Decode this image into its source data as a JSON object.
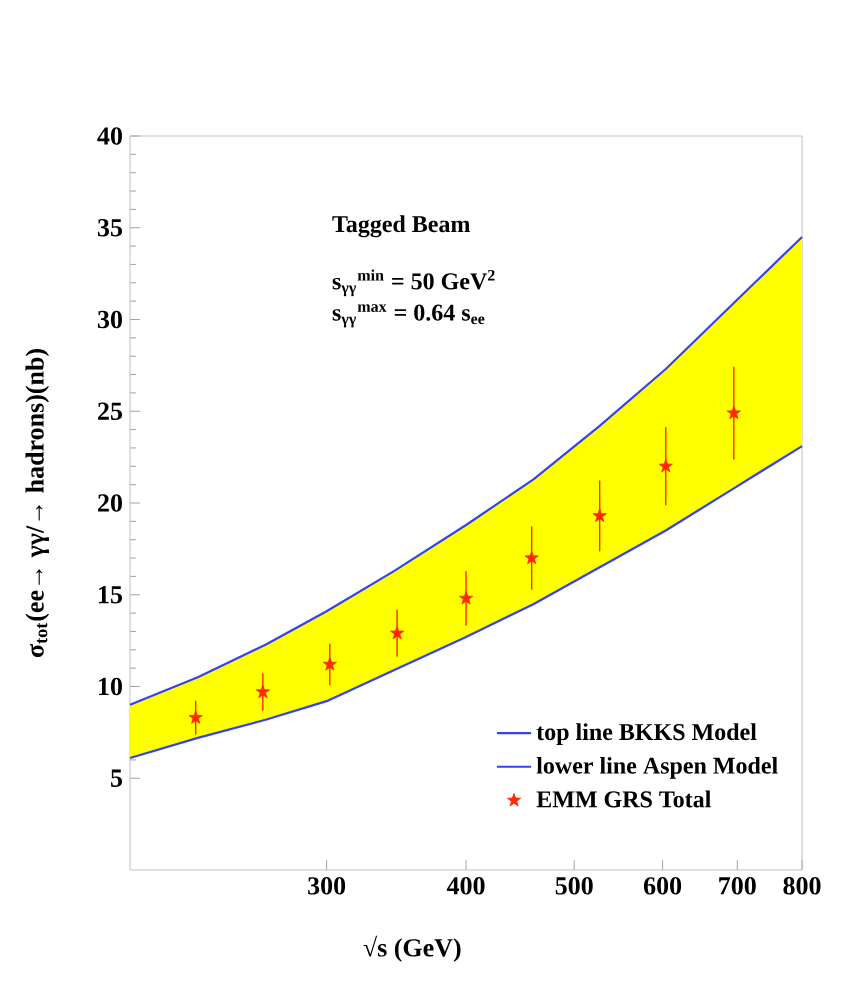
{
  "chart_data": {
    "type": "line",
    "xlabel": "√s (GeV)",
    "ylabel": "σ$_{tot}$(ee→ γγ/→ hadrons)(nb)",
    "log": "x",
    "xlim": [
      200,
      800
    ],
    "xticks": [
      300,
      400,
      500,
      600,
      700,
      800
    ],
    "ylim": [
      0,
      40
    ],
    "yticks": [
      5,
      10,
      15,
      20,
      25,
      30,
      35,
      40
    ],
    "legend": "bottom right",
    "grid": false,
    "annotations": [
      "Tagged Beam",
      "s$_{γγ}$$^{min}$ = 50 GeV$^{2}$",
      "s$_{γγ}$$^{max}$ = 0.64 s$_{ee}$"
    ],
    "series": [
      {
        "type": "area",
        "color": "#ffff00",
        "x": [
          200,
          230,
          265,
          300,
          345,
          400,
          460,
          527,
          604,
          695,
          800
        ],
        "values": [
          9.0,
          10.5,
          12.3,
          14.1,
          16.3,
          18.8,
          21.3,
          24.2,
          27.3,
          30.9,
          34.5
        ]
      },
      {
        "type": "line",
        "name": "top line BKKS Model",
        "color": "#3344ee",
        "x": [
          200,
          230,
          265,
          300,
          345,
          400,
          460,
          527,
          604,
          695,
          800
        ],
        "values": [
          9.0,
          10.5,
          12.3,
          14.1,
          16.3,
          18.8,
          21.3,
          24.2,
          27.3,
          30.9,
          34.5
        ]
      },
      {
        "type": "line",
        "name": "lower line Aspen Model",
        "color": "#3344ee",
        "x": [
          200,
          230,
          265,
          300,
          345,
          400,
          460,
          527,
          604,
          695,
          800
        ],
        "values": [
          6.1,
          7.2,
          8.2,
          9.2,
          10.9,
          12.7,
          14.5,
          16.5,
          18.5,
          20.8,
          23.1
        ]
      },
      {
        "type": "scatter",
        "name": "EMM GRS Total",
        "color": "#ff2a00",
        "marker": "star",
        "x": [
          229,
          263,
          302,
          347,
          400,
          458,
          527,
          604,
          695
        ],
        "values": [
          8.3,
          9.7,
          11.2,
          12.9,
          14.8,
          17.0,
          19.3,
          22.0,
          24.9
        ],
        "errors": [
          0.9,
          1.0,
          1.1,
          1.25,
          1.45,
          1.7,
          1.9,
          2.1,
          2.5
        ]
      }
    ]
  }
}
